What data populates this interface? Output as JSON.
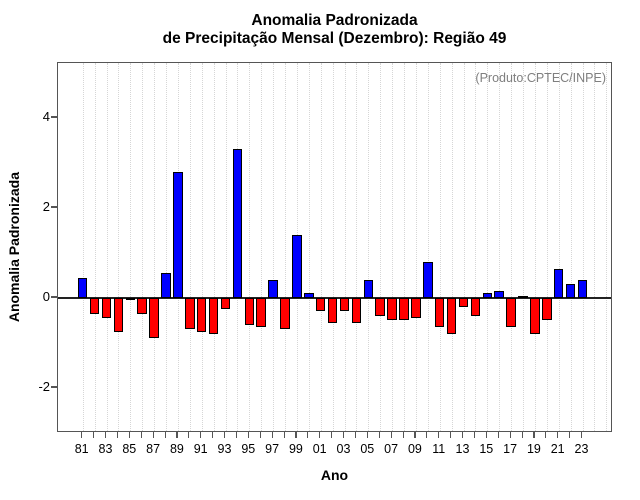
{
  "chart_data": {
    "type": "bar",
    "title_line1": "Anomalia Padronizada",
    "title_line2": "de Precipitação Mensal (Dezembro): Região 49",
    "annotation": "(Produto:CPTEC/INPE)",
    "xlabel": "Ano",
    "ylabel": "Anomalia Padronizada",
    "categories": [
      "81",
      "82",
      "83",
      "84",
      "85",
      "86",
      "87",
      "88",
      "89",
      "90",
      "91",
      "92",
      "93",
      "94",
      "95",
      "96",
      "97",
      "98",
      "99",
      "00",
      "01",
      "02",
      "03",
      "04",
      "05",
      "06",
      "07",
      "08",
      "09",
      "10",
      "11",
      "12",
      "13",
      "14",
      "15",
      "16",
      "17",
      "18",
      "19",
      "20",
      "21",
      "22",
      "23"
    ],
    "values": [
      0.45,
      -0.35,
      -0.45,
      -0.75,
      -0.05,
      -0.35,
      -0.9,
      0.55,
      2.8,
      -0.7,
      -0.75,
      -0.8,
      -0.25,
      3.3,
      -0.6,
      -0.65,
      0.4,
      -0.7,
      1.4,
      0.12,
      -0.3,
      -0.55,
      -0.3,
      -0.55,
      0.4,
      -0.4,
      -0.5,
      -0.5,
      -0.45,
      0.8,
      -0.65,
      -0.8,
      -0.2,
      -0.4,
      0.1,
      0.15,
      -0.65,
      0.02,
      -0.8,
      -0.5,
      0.65,
      0.3,
      0.4
    ],
    "yticks": [
      -2,
      0,
      2,
      4
    ],
    "ytick_labels": [
      "-2",
      "0",
      "2",
      "4"
    ],
    "ylim": [
      -3.0,
      5.22
    ],
    "x_label_every": 2,
    "grid": "vertical-dotted",
    "legend": "none",
    "colors": {
      "positive": "#0000ff",
      "negative": "#ff0000",
      "bar_border": "#000000",
      "grid": "#d6d6d6",
      "axis": "#555555",
      "zero_line": "#222222",
      "annotation_text": "#7f7f7f",
      "text": "#000000"
    }
  }
}
